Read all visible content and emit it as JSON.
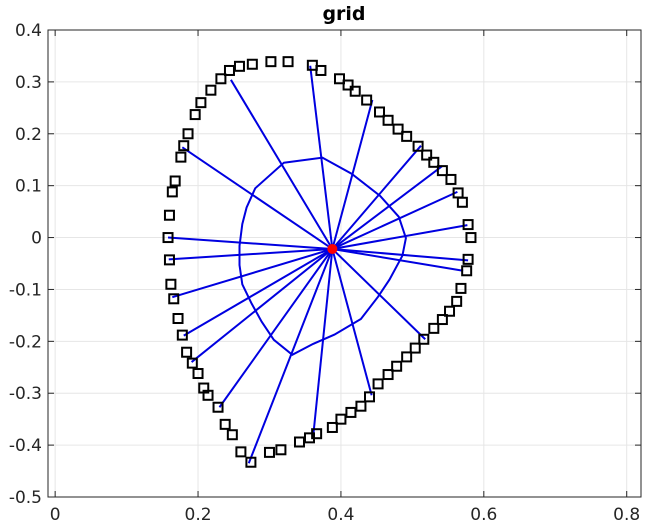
{
  "chart_data": {
    "type": "scatter",
    "title": "grid",
    "xlabel": "",
    "ylabel": "",
    "xlim": [
      -0.01,
      0.82
    ],
    "ylim": [
      -0.5,
      0.4
    ],
    "x_ticks": [
      0,
      0.2,
      0.4,
      0.6,
      0.8
    ],
    "x_tick_labels": [
      "0",
      "0.2",
      "0.4",
      "0.6",
      "0.8"
    ],
    "y_ticks": [
      -0.5,
      -0.4,
      -0.3,
      -0.2,
      -0.1,
      0,
      0.1,
      0.2,
      0.3,
      0.4
    ],
    "y_tick_labels": [
      "-0.5",
      "-0.4",
      "-0.3",
      "-0.2",
      "-0.1",
      "0",
      "0.1",
      "0.2",
      "0.3",
      "0.4"
    ],
    "grid": true,
    "colors": {
      "boundary": "#000000",
      "spokes": "#0000e0",
      "center": "#ff0000",
      "grid": "#e6e6e6",
      "axes": "#262626"
    },
    "center": [
      0.388,
      -0.022
    ],
    "boundary_points": [
      [
        0.302,
        0.339
      ],
      [
        0.326,
        0.339
      ],
      [
        0.36,
        0.332
      ],
      [
        0.372,
        0.322
      ],
      [
        0.398,
        0.306
      ],
      [
        0.41,
        0.294
      ],
      [
        0.42,
        0.282
      ],
      [
        0.436,
        0.265
      ],
      [
        0.454,
        0.242
      ],
      [
        0.466,
        0.226
      ],
      [
        0.48,
        0.209
      ],
      [
        0.492,
        0.195
      ],
      [
        0.508,
        0.176
      ],
      [
        0.52,
        0.159
      ],
      [
        0.53,
        0.145
      ],
      [
        0.542,
        0.129
      ],
      [
        0.554,
        0.112
      ],
      [
        0.564,
        0.086
      ],
      [
        0.57,
        0.068
      ],
      [
        0.578,
        0.025
      ],
      [
        0.582,
        0.0
      ],
      [
        0.578,
        -0.042
      ],
      [
        0.576,
        -0.064
      ],
      [
        0.568,
        -0.098
      ],
      [
        0.562,
        -0.123
      ],
      [
        0.552,
        -0.142
      ],
      [
        0.542,
        -0.158
      ],
      [
        0.53,
        -0.175
      ],
      [
        0.516,
        -0.196
      ],
      [
        0.504,
        -0.213
      ],
      [
        0.492,
        -0.23
      ],
      [
        0.478,
        -0.248
      ],
      [
        0.466,
        -0.264
      ],
      [
        0.452,
        -0.282
      ],
      [
        0.44,
        -0.307
      ],
      [
        0.428,
        -0.325
      ],
      [
        0.414,
        -0.337
      ],
      [
        0.4,
        -0.35
      ],
      [
        0.388,
        -0.366
      ],
      [
        0.366,
        -0.378
      ],
      [
        0.356,
        -0.386
      ],
      [
        0.342,
        -0.394
      ],
      [
        0.316,
        -0.409
      ],
      [
        0.3,
        -0.414
      ],
      [
        0.274,
        -0.433
      ],
      [
        0.26,
        -0.413
      ],
      [
        0.248,
        -0.38
      ],
      [
        0.238,
        -0.36
      ],
      [
        0.228,
        -0.327
      ],
      [
        0.214,
        -0.304
      ],
      [
        0.208,
        -0.29
      ],
      [
        0.2,
        -0.262
      ],
      [
        0.192,
        -0.242
      ],
      [
        0.184,
        -0.221
      ],
      [
        0.178,
        -0.188
      ],
      [
        0.172,
        -0.156
      ],
      [
        0.166,
        -0.118
      ],
      [
        0.162,
        -0.09
      ],
      [
        0.16,
        -0.043
      ],
      [
        0.158,
        0.0
      ],
      [
        0.16,
        0.043
      ],
      [
        0.164,
        0.088
      ],
      [
        0.168,
        0.109
      ],
      [
        0.176,
        0.155
      ],
      [
        0.18,
        0.177
      ],
      [
        0.186,
        0.2
      ],
      [
        0.196,
        0.237
      ],
      [
        0.204,
        0.26
      ],
      [
        0.218,
        0.284
      ],
      [
        0.232,
        0.306
      ],
      [
        0.244,
        0.322
      ],
      [
        0.258,
        0.33
      ],
      [
        0.276,
        0.334
      ]
    ],
    "spoke_ends": [
      [
        0.246,
        0.304
      ],
      [
        0.357,
        0.331
      ],
      [
        0.444,
        0.265
      ],
      [
        0.512,
        0.177
      ],
      [
        0.542,
        0.138
      ],
      [
        0.563,
        0.088
      ],
      [
        0.577,
        0.024
      ],
      [
        0.578,
        -0.044
      ],
      [
        0.571,
        -0.064
      ],
      [
        0.518,
        -0.196
      ],
      [
        0.443,
        -0.304
      ],
      [
        0.361,
        -0.385
      ],
      [
        0.271,
        -0.435
      ],
      [
        0.23,
        -0.327
      ],
      [
        0.191,
        -0.24
      ],
      [
        0.18,
        -0.189
      ],
      [
        0.164,
        -0.115
      ],
      [
        0.159,
        -0.042
      ],
      [
        0.158,
        0.0
      ],
      [
        0.178,
        0.174
      ]
    ],
    "inner_contour": [
      [
        0.32,
        0.144
      ],
      [
        0.374,
        0.154
      ],
      [
        0.415,
        0.123
      ],
      [
        0.455,
        0.08
      ],
      [
        0.481,
        0.04
      ],
      [
        0.491,
        -0.001
      ],
      [
        0.486,
        -0.035
      ],
      [
        0.468,
        -0.081
      ],
      [
        0.452,
        -0.114
      ],
      [
        0.428,
        -0.157
      ],
      [
        0.391,
        -0.187
      ],
      [
        0.361,
        -0.205
      ],
      [
        0.332,
        -0.226
      ],
      [
        0.306,
        -0.197
      ],
      [
        0.289,
        -0.162
      ],
      [
        0.275,
        -0.127
      ],
      [
        0.262,
        -0.09
      ],
      [
        0.258,
        -0.053
      ],
      [
        0.258,
        -0.016
      ],
      [
        0.262,
        0.026
      ],
      [
        0.268,
        0.058
      ],
      [
        0.28,
        0.095
      ]
    ]
  }
}
